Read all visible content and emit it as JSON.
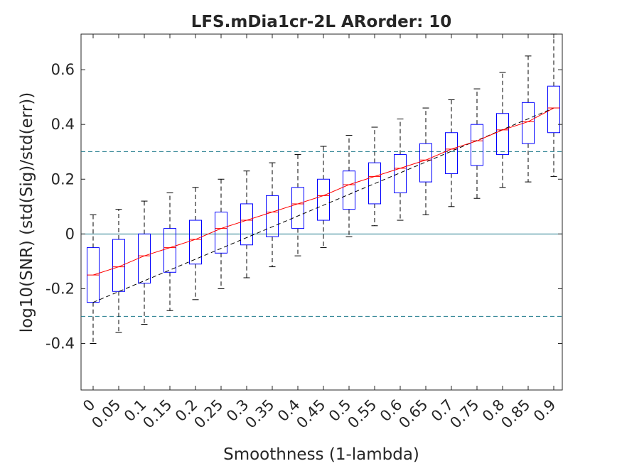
{
  "chart_data": {
    "type": "boxplot",
    "title": "LFS.mDia1cr-2L ARorder: 10",
    "xlabel": "Smoothness (1-lambda)",
    "ylabel": "log10(SNR) (std(Sig)/std(err))",
    "categories": [
      "0",
      "0.05",
      "0.1",
      "0.15",
      "0.2",
      "0.25",
      "0.3",
      "0.35",
      "0.4",
      "0.45",
      "0.5",
      "0.55",
      "0.6",
      "0.65",
      "0.7",
      "0.75",
      "0.8",
      "0.85",
      "0.9"
    ],
    "ylim": [
      -0.57,
      0.73
    ],
    "yticks": [
      -0.4,
      -0.2,
      0,
      0.2,
      0.4,
      0.6
    ],
    "ytick_labels": [
      "-0.4",
      "-0.2",
      "0",
      "0.2",
      "0.4",
      "0.6"
    ],
    "boxes": [
      {
        "whisker_low": -0.4,
        "q1": -0.25,
        "median": -0.15,
        "q3": -0.05,
        "whisker_high": 0.07
      },
      {
        "whisker_low": -0.36,
        "q1": -0.21,
        "median": -0.12,
        "q3": -0.02,
        "whisker_high": 0.09
      },
      {
        "whisker_low": -0.33,
        "q1": -0.18,
        "median": -0.08,
        "q3": 0.0,
        "whisker_high": 0.12
      },
      {
        "whisker_low": -0.28,
        "q1": -0.14,
        "median": -0.05,
        "q3": 0.02,
        "whisker_high": 0.15
      },
      {
        "whisker_low": -0.24,
        "q1": -0.11,
        "median": -0.02,
        "q3": 0.05,
        "whisker_high": 0.17
      },
      {
        "whisker_low": -0.2,
        "q1": -0.07,
        "median": 0.02,
        "q3": 0.08,
        "whisker_high": 0.2
      },
      {
        "whisker_low": -0.16,
        "q1": -0.04,
        "median": 0.05,
        "q3": 0.11,
        "whisker_high": 0.23
      },
      {
        "whisker_low": -0.12,
        "q1": -0.01,
        "median": 0.08,
        "q3": 0.14,
        "whisker_high": 0.26
      },
      {
        "whisker_low": -0.08,
        "q1": 0.02,
        "median": 0.11,
        "q3": 0.17,
        "whisker_high": 0.29
      },
      {
        "whisker_low": -0.05,
        "q1": 0.05,
        "median": 0.14,
        "q3": 0.2,
        "whisker_high": 0.32
      },
      {
        "whisker_low": -0.01,
        "q1": 0.09,
        "median": 0.18,
        "q3": 0.23,
        "whisker_high": 0.36
      },
      {
        "whisker_low": 0.03,
        "q1": 0.11,
        "median": 0.21,
        "q3": 0.26,
        "whisker_high": 0.39
      },
      {
        "whisker_low": 0.05,
        "q1": 0.15,
        "median": 0.24,
        "q3": 0.29,
        "whisker_high": 0.42
      },
      {
        "whisker_low": 0.07,
        "q1": 0.19,
        "median": 0.27,
        "q3": 0.33,
        "whisker_high": 0.46
      },
      {
        "whisker_low": 0.1,
        "q1": 0.22,
        "median": 0.31,
        "q3": 0.37,
        "whisker_high": 0.49
      },
      {
        "whisker_low": 0.13,
        "q1": 0.25,
        "median": 0.34,
        "q3": 0.4,
        "whisker_high": 0.53
      },
      {
        "whisker_low": 0.17,
        "q1": 0.29,
        "median": 0.38,
        "q3": 0.44,
        "whisker_high": 0.59
      },
      {
        "whisker_low": 0.19,
        "q1": 0.33,
        "median": 0.41,
        "q3": 0.48,
        "whisker_high": 0.65
      },
      {
        "whisker_low": 0.21,
        "q1": 0.37,
        "median": 0.46,
        "q3": 0.54,
        "whisker_high": 0.73
      }
    ],
    "mean_line": [
      -0.15,
      -0.12,
      -0.08,
      -0.05,
      -0.02,
      0.02,
      0.05,
      0.08,
      0.11,
      0.14,
      0.18,
      0.21,
      0.24,
      0.27,
      0.31,
      0.34,
      0.38,
      0.41,
      0.46
    ],
    "trend_line": {
      "from": [
        0,
        -0.25
      ],
      "to": [
        0.9,
        0.46
      ]
    },
    "reference_lines": {
      "solid": [
        0
      ],
      "dashed": [
        0.301,
        -0.301
      ]
    },
    "grid": false,
    "colors": {
      "box": "#0000ff",
      "whisker": "#000000",
      "median": "#ff0000",
      "mean_line": "#ff0000",
      "trend_line": "#000000",
      "reference": "#1f7a8c",
      "axes": "#262626"
    }
  }
}
